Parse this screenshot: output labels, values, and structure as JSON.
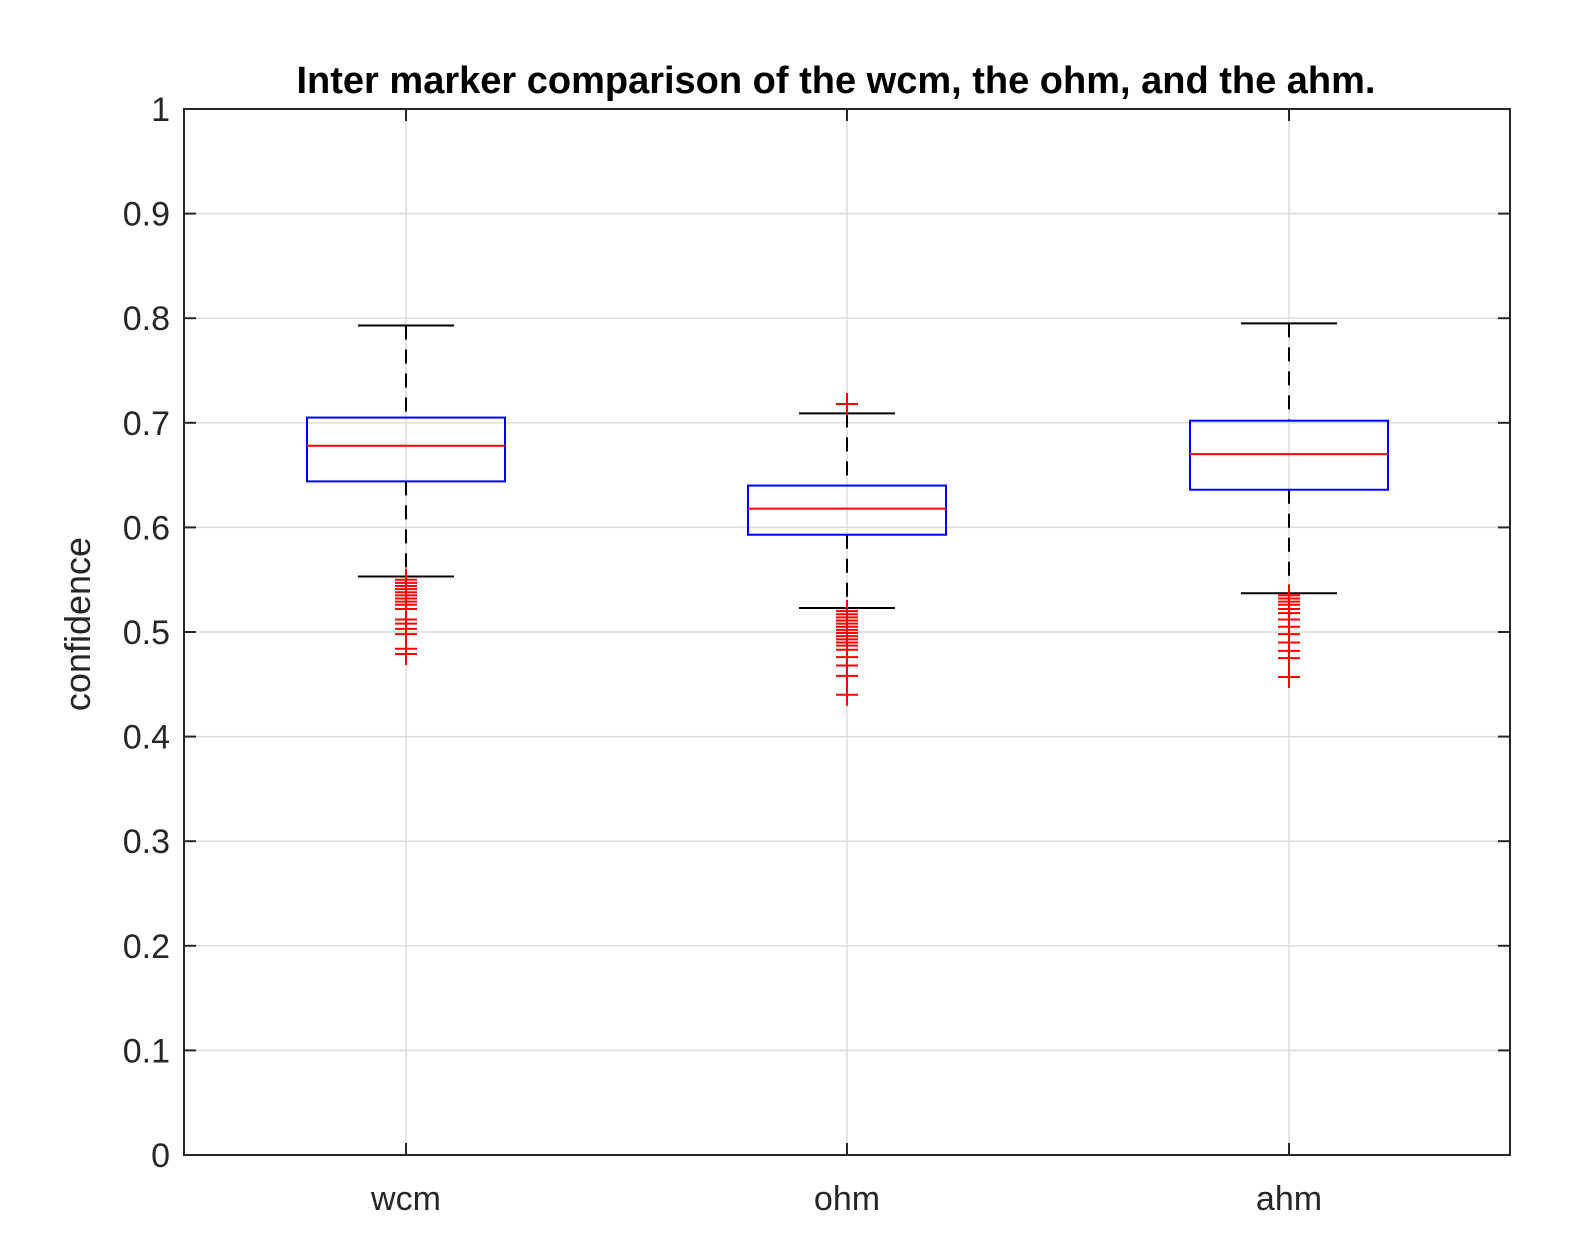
{
  "chart_data": {
    "type": "box",
    "title": "Inter marker comparison of the wcm, the ohm, and the ahm.",
    "xlabel": "",
    "ylabel": "confidence",
    "ylim": [
      0,
      1
    ],
    "yticks": [
      0,
      0.1,
      0.2,
      0.3,
      0.4,
      0.5,
      0.6,
      0.7,
      0.8,
      0.9,
      1
    ],
    "ytick_labels": [
      "0",
      "0.1",
      "0.2",
      "0.3",
      "0.4",
      "0.5",
      "0.6",
      "0.7",
      "0.8",
      "0.9",
      "1"
    ],
    "grid": true,
    "categories": [
      "wcm",
      "ohm",
      "ahm"
    ],
    "boxes": [
      {
        "category": "wcm",
        "whisker_high": 0.793,
        "q3": 0.705,
        "median": 0.678,
        "q1": 0.644,
        "whisker_low": 0.553,
        "outliers": [
          0.55,
          0.547,
          0.544,
          0.541,
          0.538,
          0.535,
          0.532,
          0.529,
          0.526,
          0.522,
          0.512,
          0.508,
          0.503,
          0.498,
          0.484,
          0.479
        ]
      },
      {
        "category": "ohm",
        "whisker_high": 0.709,
        "q3": 0.64,
        "median": 0.618,
        "q1": 0.593,
        "whisker_low": 0.523,
        "outliers": [
          0.718,
          0.52,
          0.517,
          0.514,
          0.511,
          0.508,
          0.505,
          0.502,
          0.499,
          0.496,
          0.493,
          0.49,
          0.487,
          0.483,
          0.476,
          0.468,
          0.458,
          0.44
        ]
      },
      {
        "category": "ahm",
        "whisker_high": 0.795,
        "q3": 0.702,
        "median": 0.67,
        "q1": 0.636,
        "whisker_low": 0.537,
        "outliers": [
          0.535,
          0.532,
          0.529,
          0.526,
          0.522,
          0.518,
          0.512,
          0.505,
          0.498,
          0.49,
          0.482,
          0.475,
          0.457
        ]
      }
    ],
    "colors": {
      "box": "#0000ff",
      "median": "#ff0000",
      "outlier": "#ff0000",
      "whisker": "#000000",
      "grid": "#dcdcdc",
      "axis": "#262626"
    }
  }
}
